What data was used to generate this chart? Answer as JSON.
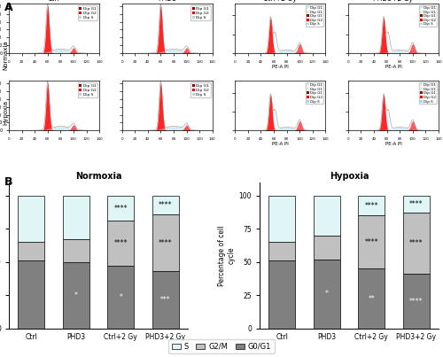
{
  "normoxia": {
    "categories": [
      "Ctrl",
      "PHD3",
      "Ctrl+2 Gy",
      "PHD3+2 Gy"
    ],
    "G0G1": [
      51,
      50,
      47,
      43
    ],
    "G2M": [
      14,
      17,
      34,
      43
    ],
    "S": [
      35,
      33,
      19,
      14
    ],
    "annotations_G0G1": [
      "",
      "*",
      "*",
      "***"
    ],
    "annotations_G2M": [
      "",
      "",
      "****",
      "****"
    ],
    "annotations_S": [
      "",
      "",
      "****",
      "****"
    ]
  },
  "hypoxia": {
    "categories": [
      "Ctrl",
      "PHD3",
      "Ctrl+2 Gy",
      "PHD3+2 Gy"
    ],
    "G0G1": [
      51,
      52,
      45,
      41
    ],
    "G2M": [
      14,
      18,
      40,
      46
    ],
    "S": [
      35,
      30,
      15,
      13
    ],
    "annotations_G0G1": [
      "",
      "*",
      "**",
      "****"
    ],
    "annotations_G2M": [
      "",
      "",
      "****",
      "****"
    ],
    "annotations_S": [
      "",
      "",
      "****",
      "****"
    ]
  },
  "colors": {
    "S": "#e0f5f5",
    "G2M": "#c0c0c0",
    "G0G1": "#808080"
  },
  "ylabel": "Percentage of cell cycle",
  "ylim": [
    0,
    110
  ],
  "title_normoxia": "Normoxia",
  "title_hypoxia": "Hypoxia",
  "panel_label_A": "A",
  "panel_label_B": "B",
  "legend_labels": [
    "S",
    "G2/M",
    "G0/G1"
  ],
  "col_titles": [
    "Ctrl",
    "PHD3",
    "Ctrl+2 Gy",
    "PHD3+2 Gy"
  ],
  "row_labels": [
    "Normaxia",
    "Hypoxia"
  ]
}
